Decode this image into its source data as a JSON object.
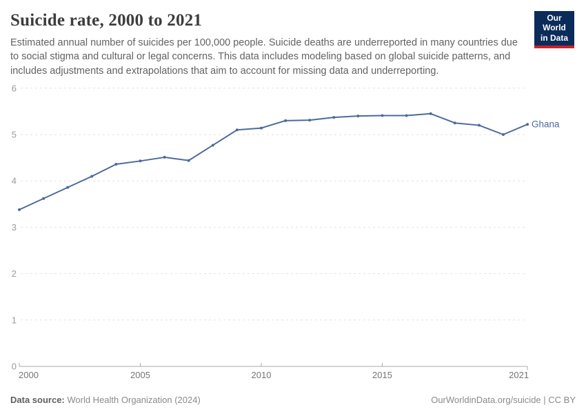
{
  "header": {
    "title": "Suicide rate, 2000 to 2021",
    "subtitle": "Estimated annual number of suicides per 100,000 people. Suicide deaths are underreported in many countries due to social stigma and cultural or legal concerns. This data includes modeling based on global suicide patterns, and includes adjustments and extrapolations that aim to account for missing data and underreporting.",
    "logo": {
      "line1": "Our World",
      "line2": "in Data",
      "bg_color": "#0b2c5a",
      "bar_color": "#cc2128"
    }
  },
  "chart_data": {
    "type": "line",
    "title": "Suicide rate, 2000 to 2021",
    "xlabel": "",
    "ylabel": "",
    "x": [
      2000,
      2001,
      2002,
      2003,
      2004,
      2005,
      2006,
      2007,
      2008,
      2009,
      2010,
      2011,
      2012,
      2013,
      2014,
      2015,
      2016,
      2017,
      2018,
      2019,
      2020,
      2021
    ],
    "series": [
      {
        "name": "Ghana",
        "color": "#4c6a9c",
        "values": [
          3.38,
          3.62,
          3.86,
          4.1,
          4.36,
          4.43,
          4.51,
          4.44,
          4.77,
          5.1,
          5.14,
          5.3,
          5.31,
          5.37,
          5.4,
          5.41,
          5.41,
          5.45,
          5.25,
          5.2,
          5.0,
          5.22
        ]
      }
    ],
    "ylim": [
      0,
      6
    ],
    "yticks": [
      0,
      1,
      2,
      3,
      4,
      5,
      6
    ],
    "xticks": [
      2000,
      2005,
      2010,
      2015,
      2021
    ],
    "grid": "horizontal-dashed",
    "legend": "end-of-line-label"
  },
  "footer": {
    "source_label": "Data source:",
    "source_text": " World Health Organization (2024)",
    "rights_text": "OurWorldinData.org/suicide | CC BY"
  }
}
